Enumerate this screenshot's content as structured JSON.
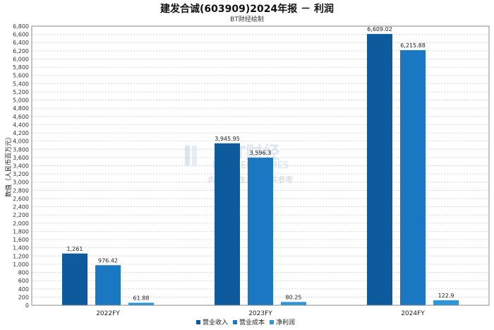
{
  "title": "建发合诚(603909)2024年报 － 利润",
  "subtitle": "BT财经绘制",
  "watermark": {
    "brand": "BT财经",
    "brand_en": "BUSINESS TIMES",
    "note": "内容由AI生成，仅供参考"
  },
  "chart_data": {
    "type": "bar",
    "categories": [
      "2022FY",
      "2023FY",
      "2024FY"
    ],
    "series": [
      {
        "name": "营业收入",
        "values": [
          1261,
          3945.95,
          6609.02
        ],
        "labels": [
          "1,261",
          "3,945.95",
          "6,609.02"
        ],
        "color": "#0d5a9c"
      },
      {
        "name": "营业成本",
        "values": [
          976.42,
          3596.3,
          6215.88
        ],
        "labels": [
          "976.42",
          "3,596.3",
          "6,215.88"
        ],
        "color": "#1a78c2"
      },
      {
        "name": "净利润",
        "values": [
          61.88,
          80.25,
          122.9
        ],
        "labels": [
          "61.88",
          "80.25",
          "122.9"
        ],
        "color": "#2a98d8"
      }
    ],
    "ylabel": "数值（人民币百万元）",
    "ylim": [
      0,
      6800
    ],
    "ytick_step": 200,
    "grid": true,
    "legend_position": "bottom-center"
  }
}
